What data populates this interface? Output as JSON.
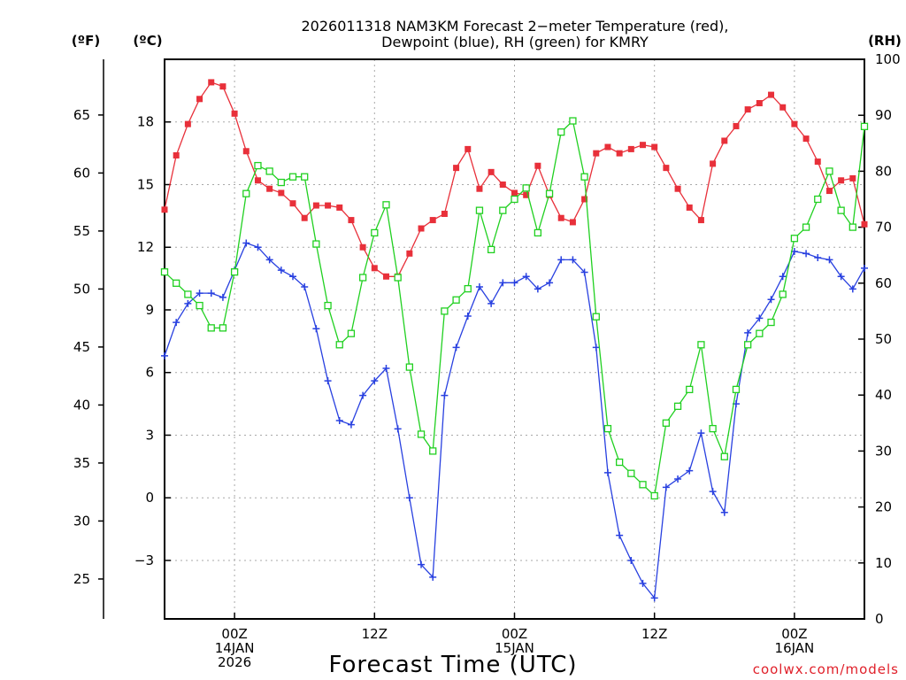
{
  "chart_data": {
    "type": "line",
    "title_lines": [
      "2026011318 NAM3KM Forecast 2−meter Temperature (red),",
      "Dewpoint (blue), RH (green) for KMRY"
    ],
    "xlabel": "Forecast Time (UTC)",
    "credit": "coolwx.com/models",
    "unit_labels": {
      "fahrenheit": "(ºF)",
      "celsius": "(ºC)",
      "rh": "(RH)"
    },
    "x_range_hours": [
      0,
      60
    ],
    "x_tick_hours": [
      6,
      18,
      30,
      42,
      54
    ],
    "x_tick_labels": [
      [
        "00Z",
        "14JAN",
        "2026"
      ],
      [
        "12Z"
      ],
      [
        "00Z",
        "15JAN"
      ],
      [
        "12Z"
      ],
      [
        "00Z",
        "16JAN"
      ]
    ],
    "celsius_range": [
      -5.8,
      21
    ],
    "celsius_ticks": [
      -3,
      0,
      3,
      6,
      9,
      12,
      15,
      18
    ],
    "celsius_tick_labels": [
      "−3",
      "0",
      "3",
      "6",
      "9",
      "12",
      "15",
      "18"
    ],
    "fahrenheit_ticks": [
      25,
      30,
      35,
      40,
      45,
      50,
      55,
      60,
      65
    ],
    "fahrenheit_tick_labels": [
      "25",
      "30",
      "35",
      "40",
      "45",
      "50",
      "55",
      "60",
      "65"
    ],
    "rh_range": [
      0,
      100
    ],
    "rh_ticks": [
      0,
      10,
      20,
      30,
      40,
      50,
      60,
      70,
      80,
      90,
      100
    ],
    "rh_tick_labels": [
      "0",
      "10",
      "20",
      "30",
      "40",
      "50",
      "60",
      "70",
      "80",
      "90",
      "100"
    ],
    "grid": true,
    "colors": {
      "temperature": "#e8303a",
      "dewpoint": "#2840e0",
      "rh": "#20d020",
      "grid": "#a8a8a8"
    },
    "series": [
      {
        "name": "Temperature (°C)",
        "axis": "celsius",
        "marker": "filled-square",
        "hours": [
          0,
          1,
          2,
          3,
          4,
          5,
          6,
          7,
          8,
          9,
          10,
          11,
          12,
          13,
          14,
          15,
          16,
          17,
          18,
          19,
          20,
          21,
          22,
          23,
          24,
          25,
          26,
          27,
          28,
          29,
          30,
          31,
          32,
          33,
          34,
          35,
          36,
          37,
          38,
          39,
          40,
          41,
          42,
          43,
          44,
          45,
          46,
          47,
          48,
          49,
          50,
          51,
          52,
          53,
          54,
          55,
          56,
          57,
          58,
          59,
          60
        ],
        "values": [
          13.8,
          16.4,
          17.9,
          19.1,
          19.9,
          19.7,
          18.4,
          16.6,
          15.2,
          14.8,
          14.6,
          14.1,
          13.4,
          14.0,
          14.0,
          13.9,
          13.3,
          12.0,
          11.0,
          10.6,
          10.6,
          11.7,
          12.9,
          13.3,
          13.6,
          15.8,
          16.7,
          14.8,
          15.6,
          15.0,
          14.6,
          14.5,
          15.9,
          14.5,
          13.4,
          13.2,
          14.3,
          16.5,
          16.8,
          16.5,
          16.7,
          16.9,
          16.8,
          15.8,
          14.8,
          13.9,
          13.3,
          16.0,
          17.1,
          17.8,
          18.6,
          18.9,
          19.3,
          18.7,
          17.9,
          17.2,
          16.1,
          14.7,
          15.2,
          15.3,
          13.1
        ]
      },
      {
        "name": "Dewpoint (°C)",
        "axis": "celsius",
        "marker": "plus",
        "hours": [
          0,
          1,
          2,
          3,
          4,
          5,
          6,
          7,
          8,
          9,
          10,
          11,
          12,
          13,
          14,
          15,
          16,
          17,
          18,
          19,
          20,
          21,
          22,
          23,
          24,
          25,
          26,
          27,
          28,
          29,
          30,
          31,
          32,
          33,
          34,
          35,
          36,
          37,
          38,
          39,
          40,
          41,
          42,
          43,
          44,
          45,
          46,
          47,
          48,
          49,
          50,
          51,
          52,
          53,
          54,
          55,
          56,
          57,
          58,
          59,
          60
        ],
        "values": [
          6.8,
          8.4,
          9.3,
          9.8,
          9.8,
          9.6,
          10.9,
          12.2,
          12.0,
          11.4,
          10.9,
          10.6,
          10.1,
          8.1,
          5.6,
          3.7,
          3.5,
          4.9,
          5.6,
          6.2,
          3.3,
          0.0,
          -3.2,
          -3.8,
          4.9,
          7.2,
          8.7,
          10.1,
          9.3,
          10.3,
          10.3,
          10.6,
          10.0,
          10.3,
          11.4,
          11.4,
          10.8,
          7.2,
          1.2,
          -1.8,
          -3.0,
          -4.1,
          -4.8,
          0.5,
          0.9,
          1.3,
          3.1,
          0.3,
          -0.7,
          4.5,
          7.9,
          8.6,
          9.5,
          10.6,
          11.8,
          11.7,
          11.5,
          11.4,
          10.6,
          10.0,
          11.0
        ]
      },
      {
        "name": "RH (%)",
        "axis": "rh",
        "marker": "open-square",
        "hours": [
          0,
          1,
          2,
          3,
          4,
          5,
          6,
          7,
          8,
          9,
          10,
          11,
          12,
          13,
          14,
          15,
          16,
          17,
          18,
          19,
          20,
          21,
          22,
          23,
          24,
          25,
          26,
          27,
          28,
          29,
          30,
          31,
          32,
          33,
          34,
          35,
          36,
          37,
          38,
          39,
          40,
          41,
          42,
          43,
          44,
          45,
          46,
          47,
          48,
          49,
          50,
          51,
          52,
          53,
          54,
          55,
          56,
          57,
          58,
          59,
          60
        ],
        "values": [
          62,
          60,
          58,
          56,
          52,
          52,
          62,
          76,
          81,
          80,
          78,
          79,
          79,
          67,
          56,
          49,
          51,
          61,
          69,
          74,
          61,
          45,
          33,
          30,
          55,
          57,
          59,
          73,
          66,
          73,
          75,
          77,
          69,
          76,
          87,
          89,
          79,
          54,
          34,
          28,
          26,
          24,
          22,
          35,
          38,
          41,
          49,
          34,
          29,
          41,
          49,
          51,
          53,
          58,
          68,
          70,
          75,
          80,
          73,
          70,
          88
        ]
      }
    ]
  }
}
